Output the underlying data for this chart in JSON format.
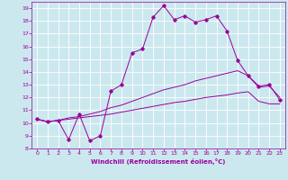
{
  "xlabel": "Windchill (Refroidissement éolien,°C)",
  "background_color": "#cce8ef",
  "grid_color": "#ffffff",
  "line_color": "#990099",
  "xlim": [
    -0.5,
    23.5
  ],
  "ylim": [
    8,
    19.5
  ],
  "xticks": [
    0,
    1,
    2,
    3,
    4,
    5,
    6,
    7,
    8,
    9,
    10,
    11,
    12,
    13,
    14,
    15,
    16,
    17,
    18,
    19,
    20,
    21,
    22,
    23
  ],
  "yticks": [
    8,
    9,
    10,
    11,
    12,
    13,
    14,
    15,
    16,
    17,
    18,
    19
  ],
  "line1_x": [
    0,
    1,
    2,
    3,
    4,
    5,
    6,
    7,
    8,
    9,
    10,
    11,
    12,
    13,
    14,
    15,
    16,
    17,
    18,
    19,
    20,
    21,
    22,
    23
  ],
  "line1_y": [
    10.3,
    10.1,
    10.2,
    8.7,
    10.7,
    8.6,
    9.0,
    12.5,
    13.0,
    15.5,
    15.8,
    18.3,
    19.2,
    18.1,
    18.4,
    17.9,
    18.1,
    18.4,
    17.2,
    14.9,
    13.7,
    12.9,
    13.0,
    11.8
  ],
  "line2_x": [
    0,
    1,
    2,
    3,
    4,
    5,
    6,
    7,
    8,
    9,
    10,
    11,
    12,
    13,
    14,
    15,
    16,
    17,
    18,
    19,
    20,
    21,
    22,
    23
  ],
  "line2_y": [
    10.3,
    10.1,
    10.2,
    10.4,
    10.5,
    10.7,
    10.9,
    11.2,
    11.4,
    11.7,
    12.0,
    12.3,
    12.6,
    12.8,
    13.0,
    13.3,
    13.5,
    13.7,
    13.9,
    14.1,
    13.7,
    12.8,
    12.9,
    12.0
  ],
  "line3_x": [
    0,
    1,
    2,
    3,
    4,
    5,
    6,
    7,
    8,
    9,
    10,
    11,
    12,
    13,
    14,
    15,
    16,
    17,
    18,
    19,
    20,
    21,
    22,
    23
  ],
  "line3_y": [
    10.3,
    10.1,
    10.2,
    10.3,
    10.4,
    10.5,
    10.6,
    10.7,
    10.85,
    11.0,
    11.15,
    11.3,
    11.45,
    11.6,
    11.7,
    11.85,
    12.0,
    12.1,
    12.2,
    12.35,
    12.45,
    11.7,
    11.5,
    11.5
  ]
}
